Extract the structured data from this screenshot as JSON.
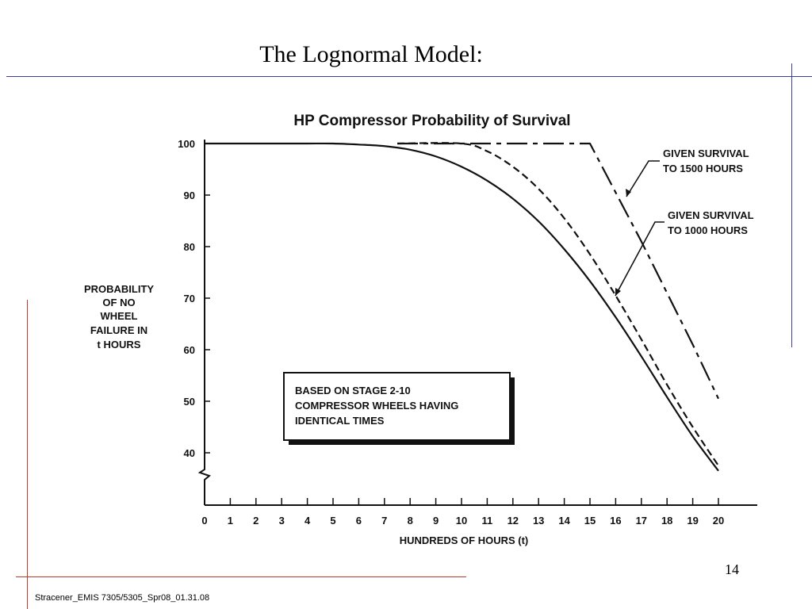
{
  "slide": {
    "title": "The Lognormal Model:",
    "page_number": "14",
    "footer": "Stracener_EMIS 7305/5305_Spr08_01.31.08"
  },
  "chart_data": {
    "type": "line",
    "title": "HP Compressor Probability of Survival",
    "xlabel": "HUNDREDS OF HOURS (t)",
    "ylabel_lines": [
      "PROBABILITY",
      "OF NO",
      "WHEEL",
      "FAILURE IN",
      "t HOURS"
    ],
    "xlim": [
      0,
      20
    ],
    "ylim": [
      40,
      100
    ],
    "x_ticks": [
      0,
      1,
      2,
      3,
      4,
      5,
      6,
      7,
      8,
      9,
      10,
      11,
      12,
      13,
      14,
      15,
      16,
      17,
      18,
      19,
      20
    ],
    "y_ticks": [
      40,
      50,
      60,
      70,
      80,
      90,
      100
    ],
    "grid": false,
    "series": [
      {
        "name": "",
        "style": "solid",
        "x": [
          0,
          1,
          2,
          3,
          4,
          5,
          6,
          7,
          8,
          9,
          10,
          11,
          12,
          13,
          14,
          15,
          16,
          17,
          18,
          19,
          20
        ],
        "y": [
          100,
          100,
          100,
          100,
          100,
          100,
          99.8,
          99.5,
          98.8,
          97.5,
          95.5,
          92.8,
          89.3,
          84.9,
          79.5,
          73.3,
          66.3,
          58.7,
          50.8,
          43.2,
          36.5
        ]
      },
      {
        "name": "GIVEN SURVIVAL TO 1000 HOURS",
        "style": "dashed",
        "x": [
          7.5,
          10,
          11,
          12,
          13,
          14,
          15,
          16,
          17,
          18,
          19,
          20
        ],
        "y": [
          100,
          100,
          98.5,
          95.5,
          91.2,
          85.5,
          78.5,
          70.5,
          62,
          53.2,
          45,
          37.5
        ]
      },
      {
        "name": "GIVEN SURVIVAL TO 1500 HOURS",
        "style": "dashdot",
        "x": [
          7.5,
          15,
          16,
          17,
          18,
          19,
          20
        ],
        "y": [
          100,
          100,
          90.5,
          81,
          71,
          61,
          50.5
        ]
      }
    ],
    "callouts": [
      {
        "lines": [
          "GIVEN SURVIVAL",
          "TO 1500 HOURS"
        ]
      },
      {
        "lines": [
          "GIVEN SURVIVAL",
          "TO 1000 HOURS"
        ]
      }
    ],
    "annotation": [
      "BASED ON STAGE 2-10",
      "COMPRESSOR WHEELS HAVING",
      "IDENTICAL TIMES"
    ]
  }
}
